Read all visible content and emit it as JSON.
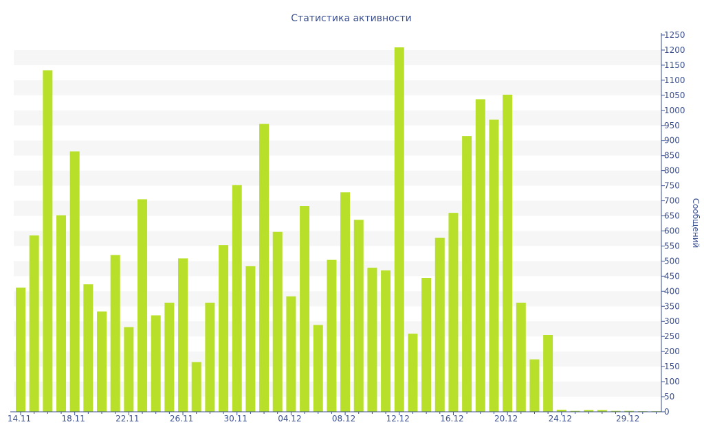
{
  "chart_data": {
    "type": "bar",
    "title": "Статистика активности",
    "xlabel": "",
    "ylabel": "Сообщений",
    "ylim": [
      0,
      1250
    ],
    "yticks": [
      0,
      50,
      100,
      150,
      200,
      250,
      300,
      350,
      400,
      450,
      500,
      550,
      600,
      650,
      700,
      750,
      800,
      850,
      900,
      950,
      1000,
      1050,
      1100,
      1150,
      1200,
      1250
    ],
    "grid": "horizontal-bands",
    "categories": [
      "14.11",
      "15.11",
      "16.11",
      "17.11",
      "18.11",
      "19.11",
      "20.11",
      "21.11",
      "22.11",
      "23.11",
      "24.11",
      "25.11",
      "26.11",
      "27.11",
      "28.11",
      "29.11",
      "30.11",
      "01.12",
      "02.12",
      "03.12",
      "04.12",
      "05.12",
      "06.12",
      "07.12",
      "08.12",
      "09.12",
      "10.12",
      "11.12",
      "12.12",
      "13.12",
      "14.12",
      "15.12",
      "16.12",
      "17.12",
      "18.12",
      "19.12",
      "20.12",
      "21.12",
      "22.12",
      "23.12",
      "24.12",
      "25.12",
      "26.12",
      "27.12",
      "28.12",
      "29.12",
      "30.12",
      "31.12"
    ],
    "xtick_labels": [
      "14.11",
      "",
      "",
      "",
      "18.11",
      "",
      "",
      "",
      "22.11",
      "",
      "",
      "",
      "26.11",
      "",
      "",
      "",
      "30.11",
      "",
      "",
      "",
      "04.12",
      "",
      "",
      "",
      "08.12",
      "",
      "",
      "",
      "12.12",
      "",
      "",
      "",
      "16.12",
      "",
      "",
      "",
      "20.12",
      "",
      "",
      "",
      "24.12",
      "",
      "",
      "",
      "",
      "29.12",
      "",
      ""
    ],
    "values": [
      412,
      585,
      1133,
      652,
      864,
      423,
      333,
      520,
      281,
      705,
      320,
      362,
      509,
      165,
      362,
      553,
      752,
      483,
      955,
      597,
      383,
      683,
      288,
      504,
      728,
      637,
      478,
      469,
      1209,
      259,
      444,
      577,
      660,
      915,
      1037,
      969,
      1052,
      362,
      174,
      255,
      7,
      3,
      6,
      6,
      3,
      3,
      2,
      2
    ],
    "colors": {
      "bar": "#b8e02a",
      "axis": "#3a4f8f",
      "band": "#f6f6f6"
    }
  }
}
